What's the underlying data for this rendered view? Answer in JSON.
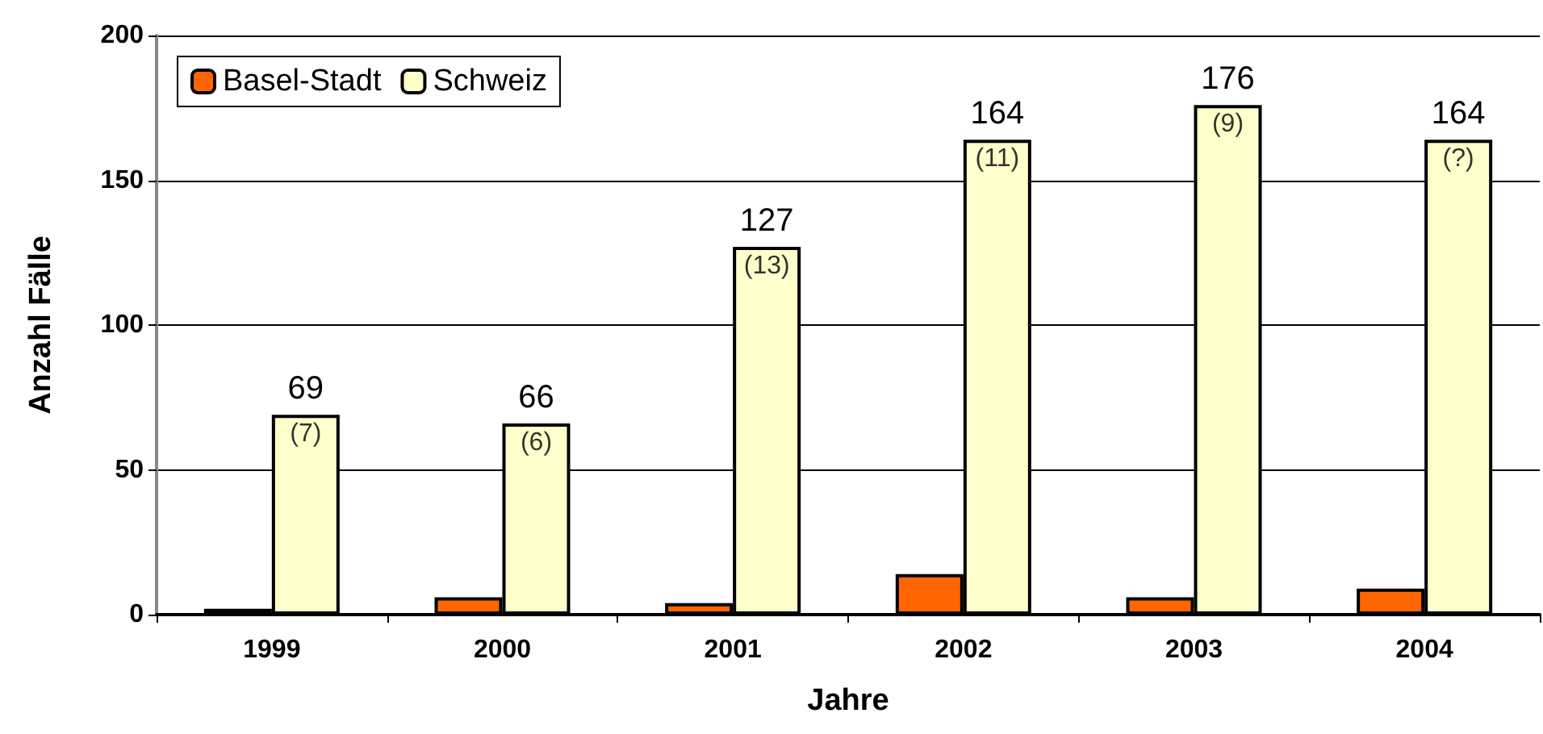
{
  "chart_data": {
    "type": "bar",
    "xlabel": "Jahre",
    "ylabel": "Anzahl Fälle",
    "categories": [
      "1999",
      "2000",
      "2001",
      "2002",
      "2003",
      "2004"
    ],
    "series": [
      {
        "name": "Basel-Stadt",
        "color": "#ff6600",
        "values": [
          2,
          6,
          4,
          14,
          6,
          9
        ]
      },
      {
        "name": "Schweiz",
        "color": "#ffffcc",
        "values": [
          69,
          66,
          127,
          164,
          176,
          164
        ],
        "value_labels": [
          "69",
          "66",
          "127",
          "164",
          "176",
          "164"
        ]
      }
    ],
    "annotations": [
      {
        "text": "(7)",
        "x": "1999",
        "y": 69
      },
      {
        "text": "(6)",
        "x": "2000",
        "y": 66
      },
      {
        "text": "(13)",
        "x": "2001",
        "y": 127
      },
      {
        "text": "(11)",
        "x": "2002",
        "y": 164
      },
      {
        "text": "(9)",
        "x": "2003",
        "y": 176
      },
      {
        "text": "(?)",
        "x": "2004",
        "y": 164
      }
    ],
    "ylim": [
      0,
      200
    ],
    "yticks": [
      0,
      50,
      100,
      150,
      200
    ],
    "grid": "y",
    "legend": "top left"
  }
}
